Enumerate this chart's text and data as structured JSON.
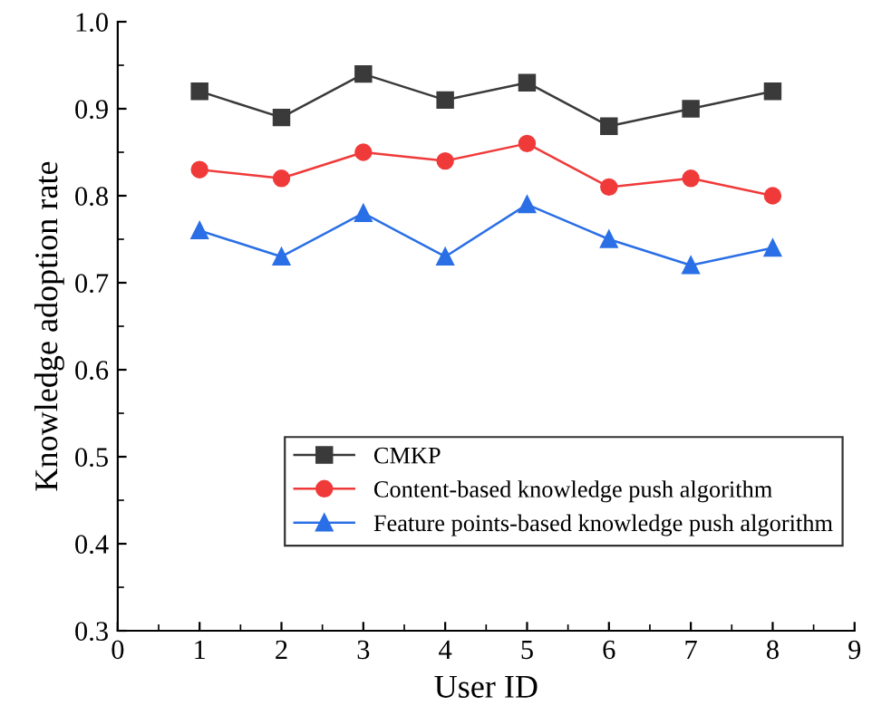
{
  "chart_data": {
    "type": "line",
    "xlabel": "User ID",
    "ylabel": "Knowledge adoption rate",
    "x": [
      1,
      2,
      3,
      4,
      5,
      6,
      7,
      8
    ],
    "series": [
      {
        "name": "CMKP",
        "color": "#3a3a3a",
        "marker": "square",
        "values": [
          0.92,
          0.89,
          0.94,
          0.91,
          0.93,
          0.88,
          0.9,
          0.92
        ]
      },
      {
        "name": "Content-based knowledge push algorithm",
        "color": "#f03a3a",
        "marker": "circle",
        "values": [
          0.83,
          0.82,
          0.85,
          0.84,
          0.86,
          0.81,
          0.82,
          0.8
        ]
      },
      {
        "name": "Feature points-based knowledge push algorithm",
        "color": "#2a6fe6",
        "marker": "triangle",
        "values": [
          0.76,
          0.73,
          0.78,
          0.73,
          0.79,
          0.75,
          0.72,
          0.74
        ]
      }
    ],
    "xlim": [
      0,
      9
    ],
    "xticks": [
      0,
      1,
      2,
      3,
      4,
      5,
      6,
      7,
      8,
      9
    ],
    "ylim": [
      0.3,
      1.0
    ],
    "yticks": [
      0.3,
      0.4,
      0.5,
      0.6,
      0.7,
      0.8,
      0.9,
      {
        "value": 1,
        "label": "1.0"
      }
    ],
    "grid": false,
    "legend": "bottom right",
    "line_style": "solid"
  }
}
